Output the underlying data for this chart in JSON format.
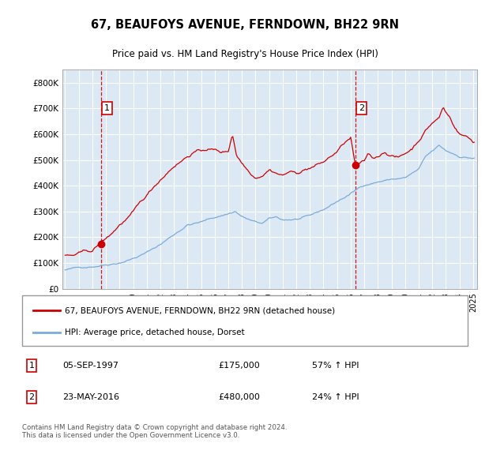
{
  "title": "67, BEAUFOYS AVENUE, FERNDOWN, BH22 9RN",
  "subtitle": "Price paid vs. HM Land Registry's House Price Index (HPI)",
  "legend_line1": "67, BEAUFOYS AVENUE, FERNDOWN, BH22 9RN (detached house)",
  "legend_line2": "HPI: Average price, detached house, Dorset",
  "annotation1_label": "1",
  "annotation1_date": "05-SEP-1997",
  "annotation1_price": "£175,000",
  "annotation1_hpi": "57% ↑ HPI",
  "annotation2_label": "2",
  "annotation2_date": "23-MAY-2016",
  "annotation2_price": "£480,000",
  "annotation2_hpi": "24% ↑ HPI",
  "footer": "Contains HM Land Registry data © Crown copyright and database right 2024.\nThis data is licensed under the Open Government Licence v3.0.",
  "red_color": "#cc0000",
  "blue_color": "#7aabdc",
  "plot_bg_color": "#dce9f5",
  "purchase1_year": 1997.67,
  "purchase1_price": 175000,
  "purchase2_year": 2016.37,
  "purchase2_price": 480000,
  "ylim_max": 850000,
  "yticks": [
    0,
    100000,
    200000,
    300000,
    400000,
    500000,
    600000,
    700000,
    800000
  ],
  "ytick_labels": [
    "£0",
    "£100K",
    "£200K",
    "£300K",
    "£400K",
    "£500K",
    "£600K",
    "£700K",
    "£800K"
  ],
  "xticks": [
    1995,
    1996,
    1997,
    1998,
    1999,
    2000,
    2001,
    2002,
    2003,
    2004,
    2005,
    2006,
    2007,
    2008,
    2009,
    2010,
    2011,
    2012,
    2013,
    2014,
    2015,
    2016,
    2017,
    2018,
    2019,
    2020,
    2021,
    2022,
    2023,
    2024,
    2025
  ],
  "hpi_anchors": [
    [
      1995.0,
      73000
    ],
    [
      1996.0,
      80000
    ],
    [
      1997.0,
      89000
    ],
    [
      1998.0,
      100000
    ],
    [
      1999.0,
      112000
    ],
    [
      2000.0,
      130000
    ],
    [
      2001.0,
      152000
    ],
    [
      2002.0,
      183000
    ],
    [
      2003.0,
      222000
    ],
    [
      2004.0,
      262000
    ],
    [
      2005.0,
      272000
    ],
    [
      2006.0,
      289000
    ],
    [
      2007.0,
      305000
    ],
    [
      2007.5,
      315000
    ],
    [
      2008.0,
      295000
    ],
    [
      2009.0,
      270000
    ],
    [
      2009.5,
      265000
    ],
    [
      2010.0,
      280000
    ],
    [
      2010.5,
      285000
    ],
    [
      2011.0,
      275000
    ],
    [
      2012.0,
      278000
    ],
    [
      2013.0,
      285000
    ],
    [
      2014.0,
      308000
    ],
    [
      2015.0,
      340000
    ],
    [
      2016.0,
      370000
    ],
    [
      2017.0,
      405000
    ],
    [
      2018.0,
      420000
    ],
    [
      2019.0,
      430000
    ],
    [
      2020.0,
      435000
    ],
    [
      2021.0,
      465000
    ],
    [
      2021.5,
      510000
    ],
    [
      2022.0,
      530000
    ],
    [
      2022.5,
      550000
    ],
    [
      2023.0,
      530000
    ],
    [
      2024.0,
      510000
    ],
    [
      2025.0,
      505000
    ]
  ],
  "price_anchors": [
    [
      1995.0,
      130000
    ],
    [
      1995.5,
      128000
    ],
    [
      1996.0,
      133000
    ],
    [
      1996.5,
      138000
    ],
    [
      1997.0,
      140000
    ],
    [
      1997.67,
      175000
    ],
    [
      1998.0,
      185000
    ],
    [
      1998.5,
      210000
    ],
    [
      1999.0,
      240000
    ],
    [
      2000.0,
      285000
    ],
    [
      2001.0,
      345000
    ],
    [
      2002.0,
      410000
    ],
    [
      2003.0,
      470000
    ],
    [
      2004.0,
      510000
    ],
    [
      2004.5,
      530000
    ],
    [
      2005.0,
      530000
    ],
    [
      2005.5,
      540000
    ],
    [
      2006.0,
      535000
    ],
    [
      2006.5,
      525000
    ],
    [
      2007.0,
      530000
    ],
    [
      2007.3,
      600000
    ],
    [
      2007.6,
      520000
    ],
    [
      2008.0,
      490000
    ],
    [
      2008.5,
      460000
    ],
    [
      2009.0,
      440000
    ],
    [
      2009.5,
      455000
    ],
    [
      2010.0,
      480000
    ],
    [
      2010.5,
      470000
    ],
    [
      2011.0,
      460000
    ],
    [
      2011.5,
      475000
    ],
    [
      2012.0,
      465000
    ],
    [
      2012.5,
      480000
    ],
    [
      2013.0,
      490000
    ],
    [
      2013.5,
      500000
    ],
    [
      2014.0,
      510000
    ],
    [
      2014.5,
      530000
    ],
    [
      2015.0,
      550000
    ],
    [
      2015.5,
      580000
    ],
    [
      2016.0,
      600000
    ],
    [
      2016.37,
      480000
    ],
    [
      2016.5,
      490000
    ],
    [
      2017.0,
      500000
    ],
    [
      2017.3,
      530000
    ],
    [
      2017.6,
      510000
    ],
    [
      2018.0,
      520000
    ],
    [
      2018.5,
      540000
    ],
    [
      2019.0,
      530000
    ],
    [
      2019.5,
      520000
    ],
    [
      2020.0,
      535000
    ],
    [
      2020.5,
      555000
    ],
    [
      2021.0,
      590000
    ],
    [
      2021.5,
      630000
    ],
    [
      2022.0,
      660000
    ],
    [
      2022.5,
      680000
    ],
    [
      2022.8,
      720000
    ],
    [
      2023.0,
      700000
    ],
    [
      2023.3,
      680000
    ],
    [
      2023.6,
      650000
    ],
    [
      2024.0,
      620000
    ],
    [
      2024.5,
      610000
    ],
    [
      2025.0,
      590000
    ]
  ]
}
